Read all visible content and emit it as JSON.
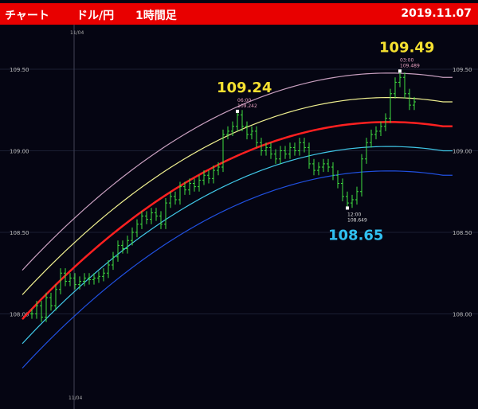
{
  "header": {
    "title": "チャート",
    "pair": "ドル/円",
    "timeframe": "1時間足",
    "date": "2019.11.07"
  },
  "chart_data": {
    "type": "candlestick",
    "ylim": [
      107.7,
      109.7
    ],
    "yticks": [
      "109.50",
      "109.00",
      "108.50",
      "108.00"
    ],
    "ytick_values": [
      109.5,
      109.0,
      108.5,
      108.0
    ],
    "date_label": "11/04",
    "date_label_bottom": "11/04",
    "closes": [
      108.0,
      108.05,
      107.98,
      108.1,
      108.05,
      108.15,
      108.25,
      108.2,
      108.22,
      108.18,
      108.2,
      108.22,
      108.21,
      108.22,
      108.23,
      108.25,
      108.3,
      108.35,
      108.42,
      108.4,
      108.45,
      108.5,
      108.55,
      108.6,
      108.58,
      108.62,
      108.6,
      108.55,
      108.68,
      108.72,
      108.7,
      108.78,
      108.76,
      108.8,
      108.78,
      108.82,
      108.85,
      108.83,
      108.88,
      108.9,
      109.1,
      109.12,
      109.15,
      109.22,
      109.15,
      109.1,
      109.12,
      109.05,
      109.0,
      109.02,
      108.98,
      108.95,
      109.0,
      108.98,
      109.02,
      109.0,
      109.05,
      109.02,
      108.92,
      108.88,
      108.9,
      108.92,
      108.9,
      108.85,
      108.8,
      108.72,
      108.68,
      108.7,
      108.75,
      108.95,
      109.05,
      109.1,
      109.12,
      109.15,
      109.2,
      109.35,
      109.42,
      109.45,
      109.35,
      109.28,
      109.3
    ],
    "bands": {
      "mid_points": [
        [
          0,
          108.03
        ],
        [
          43,
          108.97
        ],
        [
          88,
          109.14
        ]
      ],
      "offsets": [
        0.3,
        0.15,
        0,
        -0.15,
        -0.3
      ],
      "colors": [
        "#c9a0c0",
        "#f0f090",
        "#ff2020",
        "#40c8e8",
        "#2050e0"
      ]
    },
    "annotations": [
      {
        "big": "109.24",
        "time": "06:00",
        "price": "109.242",
        "index": 43,
        "value": 109.242,
        "color": "#f5e030"
      },
      {
        "big": "109.49",
        "time": "03:00",
        "price": "109.489",
        "index": 77,
        "value": 109.489,
        "color": "#f5e030"
      },
      {
        "big": "108.65",
        "time": "12:00",
        "price": "108.649",
        "index": 66,
        "value": 108.649,
        "color": "#30c0f0"
      }
    ]
  }
}
